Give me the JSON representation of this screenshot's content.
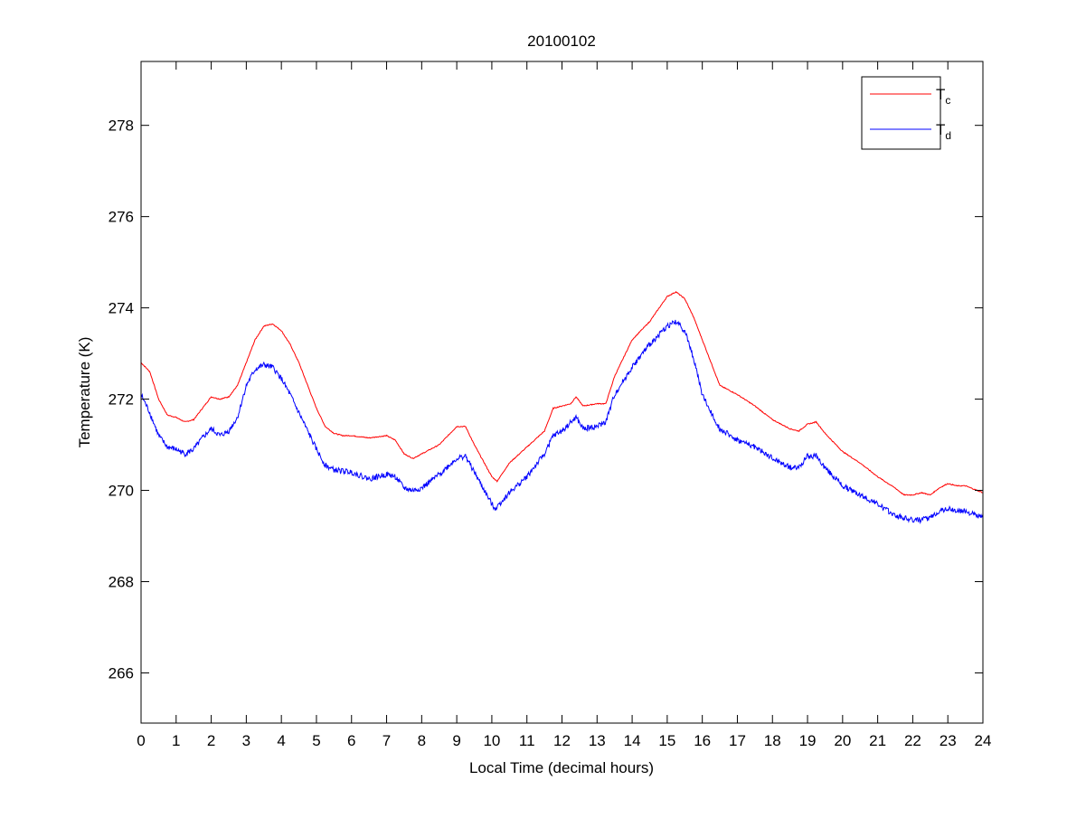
{
  "chart_data": {
    "type": "line",
    "title": "20100102",
    "xlabel": "Local Time (decimal hours)",
    "ylabel": "Temperature (K)",
    "xlim": [
      0,
      24
    ],
    "ylim": [
      264.9,
      279.4
    ],
    "xticks": [
      0,
      1,
      2,
      3,
      4,
      5,
      6,
      7,
      8,
      9,
      10,
      11,
      12,
      13,
      14,
      15,
      16,
      17,
      18,
      19,
      20,
      21,
      22,
      23,
      24
    ],
    "yticks": [
      266,
      268,
      270,
      272,
      274,
      276,
      278
    ],
    "grid": false,
    "legend": {
      "placement": "top-right"
    },
    "series": [
      {
        "name": "T",
        "subscript": "c",
        "color": "#ff0000",
        "x": [
          0,
          0.25,
          0.5,
          0.75,
          1,
          1.25,
          1.5,
          1.75,
          2,
          2.25,
          2.5,
          2.75,
          3,
          3.25,
          3.5,
          3.75,
          4,
          4.25,
          4.5,
          4.75,
          5,
          5.25,
          5.5,
          5.75,
          6,
          6.5,
          7,
          7.25,
          7.5,
          7.75,
          8,
          8.5,
          9,
          9.25,
          9.5,
          10,
          10.15,
          10.5,
          11,
          11.5,
          11.75,
          12,
          12.25,
          12.4,
          12.6,
          13,
          13.25,
          13.5,
          14,
          14.5,
          15,
          15.25,
          15.5,
          15.75,
          16,
          16.25,
          16.5,
          17,
          17.5,
          18,
          18.5,
          18.75,
          19,
          19.25,
          19.5,
          20,
          20.5,
          21,
          21.5,
          21.75,
          22,
          22.25,
          22.5,
          22.75,
          23,
          23.25,
          23.5,
          24
        ],
        "y": [
          272.8,
          272.6,
          272.0,
          271.65,
          271.6,
          271.5,
          271.55,
          271.8,
          272.05,
          272.0,
          272.05,
          272.3,
          272.8,
          273.3,
          273.6,
          273.65,
          273.5,
          273.2,
          272.8,
          272.3,
          271.8,
          271.4,
          271.25,
          271.2,
          271.2,
          271.15,
          271.2,
          271.1,
          270.8,
          270.7,
          270.8,
          271.0,
          271.4,
          271.4,
          271.0,
          270.3,
          270.2,
          270.6,
          270.95,
          271.3,
          271.8,
          271.85,
          271.9,
          272.05,
          271.85,
          271.9,
          271.9,
          272.5,
          273.3,
          273.7,
          274.25,
          274.35,
          274.2,
          273.8,
          273.3,
          272.8,
          272.3,
          272.1,
          271.85,
          271.55,
          271.35,
          271.3,
          271.45,
          271.5,
          271.25,
          270.85,
          270.6,
          270.3,
          270.05,
          269.9,
          269.9,
          269.95,
          269.9,
          270.05,
          270.15,
          270.1,
          270.1,
          269.95
        ]
      },
      {
        "name": "T",
        "subscript": "d",
        "color": "#0000ff",
        "x": [
          0,
          0.25,
          0.5,
          0.75,
          1,
          1.25,
          1.5,
          1.75,
          2,
          2.25,
          2.5,
          2.75,
          3,
          3.25,
          3.5,
          3.75,
          4,
          4.25,
          4.5,
          4.75,
          5,
          5.25,
          5.5,
          6,
          6.5,
          7,
          7.25,
          7.5,
          7.75,
          8,
          8.5,
          9,
          9.25,
          9.5,
          10,
          10.1,
          10.5,
          11,
          11.5,
          11.75,
          12,
          12.4,
          12.6,
          13,
          13.25,
          13.5,
          14,
          14.5,
          15,
          15.25,
          15.5,
          15.75,
          16,
          16.25,
          16.5,
          17,
          17.5,
          18,
          18.5,
          18.75,
          19,
          19.25,
          19.5,
          20,
          20.5,
          21,
          21.5,
          22,
          22.25,
          22.5,
          22.75,
          23,
          23.25,
          23.5,
          24
        ],
        "y": [
          272.1,
          271.7,
          271.2,
          270.95,
          270.9,
          270.8,
          270.9,
          271.15,
          271.35,
          271.2,
          271.3,
          271.6,
          272.3,
          272.65,
          272.75,
          272.7,
          272.45,
          272.1,
          271.7,
          271.3,
          270.9,
          270.55,
          270.45,
          270.4,
          270.25,
          270.35,
          270.3,
          270.05,
          270.0,
          270.05,
          270.35,
          270.7,
          270.75,
          270.4,
          269.7,
          269.6,
          269.95,
          270.3,
          270.8,
          271.2,
          271.3,
          271.6,
          271.35,
          271.4,
          271.5,
          272.1,
          272.7,
          273.2,
          273.6,
          273.7,
          273.5,
          272.9,
          272.1,
          271.7,
          271.35,
          271.1,
          270.95,
          270.7,
          270.5,
          270.5,
          270.75,
          270.75,
          270.5,
          270.1,
          269.9,
          269.7,
          269.45,
          269.35,
          269.35,
          269.4,
          269.55,
          269.6,
          269.55,
          269.55,
          269.4
        ]
      }
    ]
  }
}
